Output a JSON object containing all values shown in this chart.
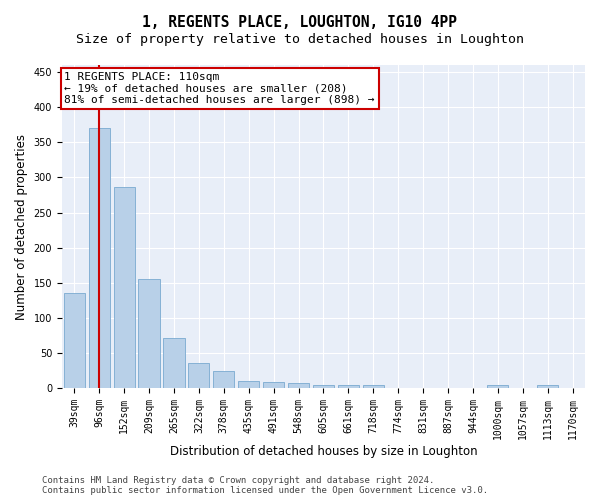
{
  "title": "1, REGENTS PLACE, LOUGHTON, IG10 4PP",
  "subtitle": "Size of property relative to detached houses in Loughton",
  "xlabel": "Distribution of detached houses by size in Loughton",
  "ylabel": "Number of detached properties",
  "categories": [
    "39sqm",
    "96sqm",
    "152sqm",
    "209sqm",
    "265sqm",
    "322sqm",
    "378sqm",
    "435sqm",
    "491sqm",
    "548sqm",
    "605sqm",
    "661sqm",
    "718sqm",
    "774sqm",
    "831sqm",
    "887sqm",
    "944sqm",
    "1000sqm",
    "1057sqm",
    "1113sqm",
    "1170sqm"
  ],
  "values": [
    135,
    370,
    287,
    155,
    72,
    36,
    25,
    10,
    8,
    7,
    4,
    4,
    4,
    0,
    0,
    0,
    0,
    4,
    0,
    4,
    0
  ],
  "bar_color": "#b8d0e8",
  "bar_edge_color": "#7aaad0",
  "vline_x": 1,
  "vline_color": "#cc0000",
  "annotation_line1": "1 REGENTS PLACE: 110sqm",
  "annotation_line2": "← 19% of detached houses are smaller (208)",
  "annotation_line3": "81% of semi-detached houses are larger (898) →",
  "annotation_box_color": "#ffffff",
  "annotation_box_edge": "#cc0000",
  "ylim": [
    0,
    460
  ],
  "yticks": [
    0,
    50,
    100,
    150,
    200,
    250,
    300,
    350,
    400,
    450
  ],
  "footer1": "Contains HM Land Registry data © Crown copyright and database right 2024.",
  "footer2": "Contains public sector information licensed under the Open Government Licence v3.0.",
  "plot_bg_color": "#e8eef8",
  "grid_color": "#ffffff",
  "title_fontsize": 10.5,
  "subtitle_fontsize": 9.5,
  "xlabel_fontsize": 8.5,
  "ylabel_fontsize": 8.5,
  "tick_fontsize": 7,
  "footer_fontsize": 6.5,
  "annot_fontsize": 8
}
